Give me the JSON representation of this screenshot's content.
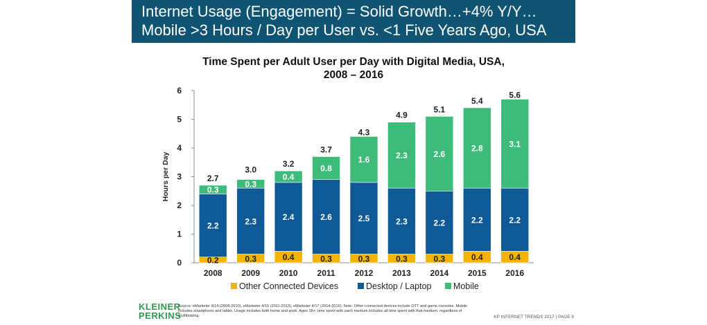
{
  "header": {
    "line1": "Internet Usage (Engagement) = Solid Growth…+4% Y/Y…",
    "line2": "Mobile >3 Hours / Day per User vs. <1 Five Years Ago, USA",
    "bg_color": "#0f5573"
  },
  "chart_data": {
    "type": "bar",
    "stacked": true,
    "title_line1": "Time Spent per Adult User per Day with Digital Media, USA,",
    "title_line2": "2008 – 2016",
    "xlabel": "",
    "ylabel": "Hours per Day",
    "ylim": [
      0,
      6
    ],
    "yticks": [
      "0",
      "1",
      "2",
      "3",
      "4",
      "5",
      "6"
    ],
    "grid": false,
    "legend_position": "bottom",
    "categories": [
      "2008",
      "2009",
      "2010",
      "2011",
      "2012",
      "2013",
      "2014",
      "2015",
      "2016"
    ],
    "series": [
      {
        "name": "Other Connected Devices",
        "color": "#f2b400",
        "values": [
          0.2,
          0.3,
          0.4,
          0.3,
          0.3,
          0.3,
          0.3,
          0.4,
          0.4
        ],
        "labels": [
          "0.2",
          "0.3",
          "0.4",
          "0.3",
          "0.3",
          "0.3",
          "0.3",
          "0.4",
          "0.4"
        ]
      },
      {
        "name": "Desktop / Laptop",
        "color": "#0f5a96",
        "values": [
          2.2,
          2.3,
          2.4,
          2.6,
          2.5,
          2.3,
          2.2,
          2.2,
          2.2
        ],
        "labels": [
          "2.2",
          "2.3",
          "2.4",
          "2.6",
          "2.5",
          "2.3",
          "2.2",
          "2.2",
          "2.2"
        ]
      },
      {
        "name": "Mobile",
        "color": "#3dbb78",
        "values": [
          0.3,
          0.3,
          0.4,
          0.8,
          1.6,
          2.3,
          2.6,
          2.8,
          3.1
        ],
        "labels": [
          "0.3",
          "0.3",
          "0.4",
          "0.8",
          "1.6",
          "2.3",
          "2.6",
          "2.8",
          "3.1"
        ]
      }
    ],
    "totals": [
      2.7,
      3.0,
      3.2,
      3.7,
      4.3,
      4.9,
      5.1,
      5.4,
      5.6
    ],
    "total_labels": [
      "2.7",
      "3.0",
      "3.2",
      "3.7",
      "4.3",
      "4.9",
      "5.1",
      "5.4",
      "5.6"
    ]
  },
  "logo": {
    "line1": "KLEINER",
    "line2": "PERKINS",
    "color": "#2e9a4f"
  },
  "source": "Source: eMarketer 9/14 (2008-2010), eMarketer 4/15 (2011-2013), eMarketer 4/17 (2014-2016). Note: Other connected devices include OTT and game consoles. Mobile includes smartphone and tablet. Usage includes both home and work. Ages 18+; time spent with each medium includes all time spent with that medium, regardless of multitasking.",
  "footer": "KP INTERNET TRENDS 2017  |  PAGE 9"
}
